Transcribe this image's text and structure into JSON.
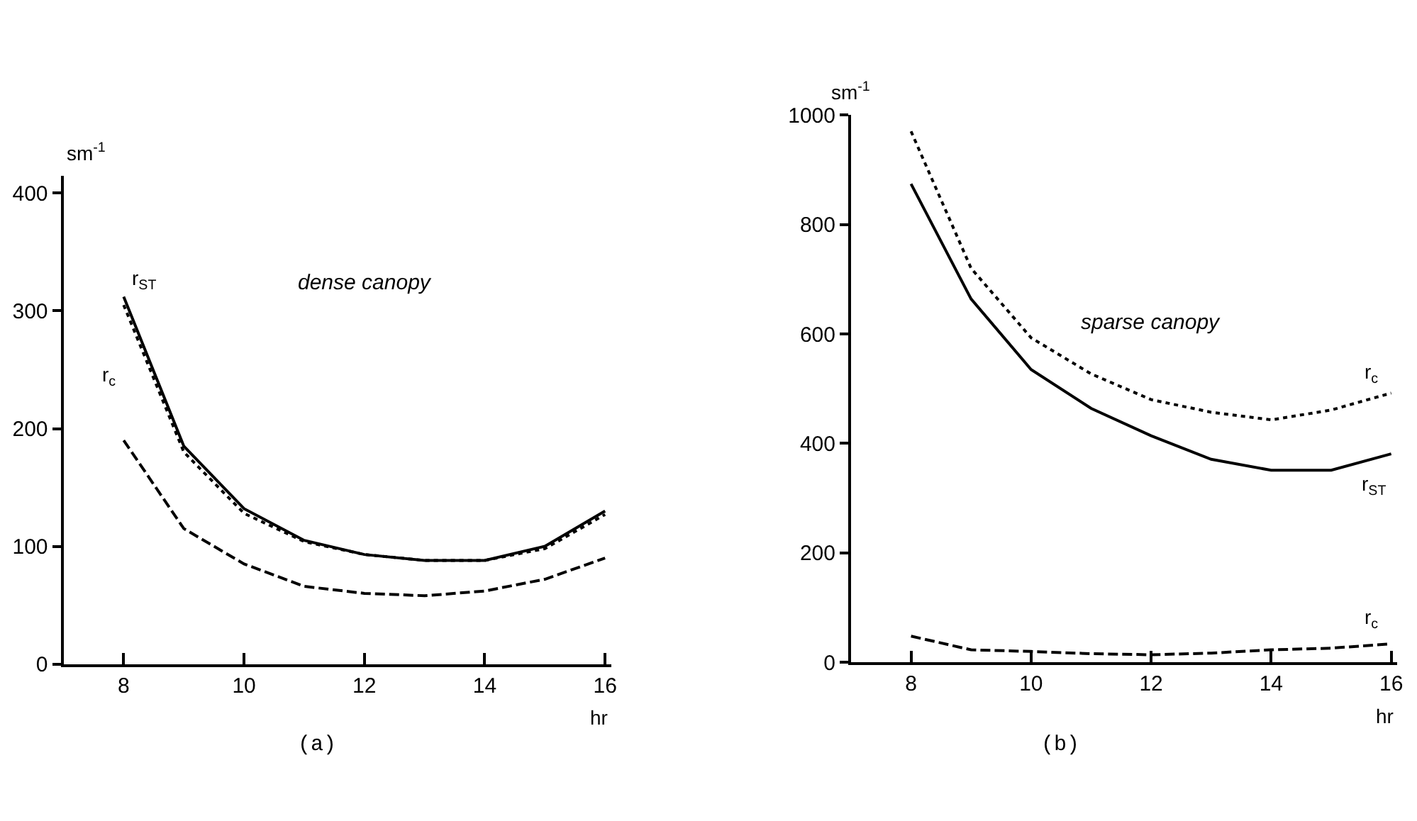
{
  "chart_data": [
    {
      "type": "line",
      "title": "dense canopy",
      "ylabel": "sm$^{-1}$",
      "xlabel": "hr",
      "annotations": [
        "(a)"
      ],
      "x": [
        8,
        9,
        10,
        11,
        12,
        13,
        14,
        15,
        16
      ],
      "xlim": [
        7,
        16.1
      ],
      "xticks": [
        8,
        10,
        12,
        14,
        16
      ],
      "ylim": [
        0,
        415
      ],
      "yticks": [
        0,
        100,
        200,
        300,
        400
      ],
      "series": [
        {
          "name": "r$_{ST}$",
          "color": "#000000",
          "line_style": "solid",
          "values": [
            312,
            185,
            132,
            105,
            93,
            88,
            88,
            100,
            130
          ]
        },
        {
          "name": "r$_{c}$",
          "color": "#000000",
          "line_style": "dotted",
          "values": [
            305,
            180,
            128,
            104,
            93,
            88,
            88,
            98,
            127
          ]
        },
        {
          "color": "#000000",
          "line_style": "dashed",
          "values": [
            190,
            115,
            85,
            66,
            60,
            58,
            62,
            72,
            90
          ]
        }
      ]
    },
    {
      "type": "line",
      "title": "sparse canopy",
      "ylabel": "sm$^{-1}$",
      "xlabel": "hr",
      "annotations": [
        "(b)"
      ],
      "x": [
        8,
        9,
        10,
        11,
        12,
        13,
        14,
        15,
        16
      ],
      "xlim": [
        7,
        16.1
      ],
      "xticks": [
        8,
        10,
        12,
        14,
        16
      ],
      "ylim": [
        0,
        1000
      ],
      "yticks": [
        0,
        200,
        400,
        600,
        800,
        1000
      ],
      "series": [
        {
          "name": "r$_{c}$",
          "color": "#000000",
          "line_style": "dotted",
          "values": [
            970,
            720,
            593,
            527,
            480,
            457,
            443,
            461,
            492
          ]
        },
        {
          "name": "r$_{ST}$",
          "color": "#000000",
          "line_style": "solid",
          "values": [
            874,
            664,
            535,
            464,
            414,
            371,
            351,
            351,
            381
          ]
        },
        {
          "name": "r$_{c}$",
          "color": "#000000",
          "line_style": "dashed",
          "values": [
            48,
            23,
            20,
            16,
            14,
            17,
            23,
            26,
            34
          ]
        }
      ]
    }
  ]
}
